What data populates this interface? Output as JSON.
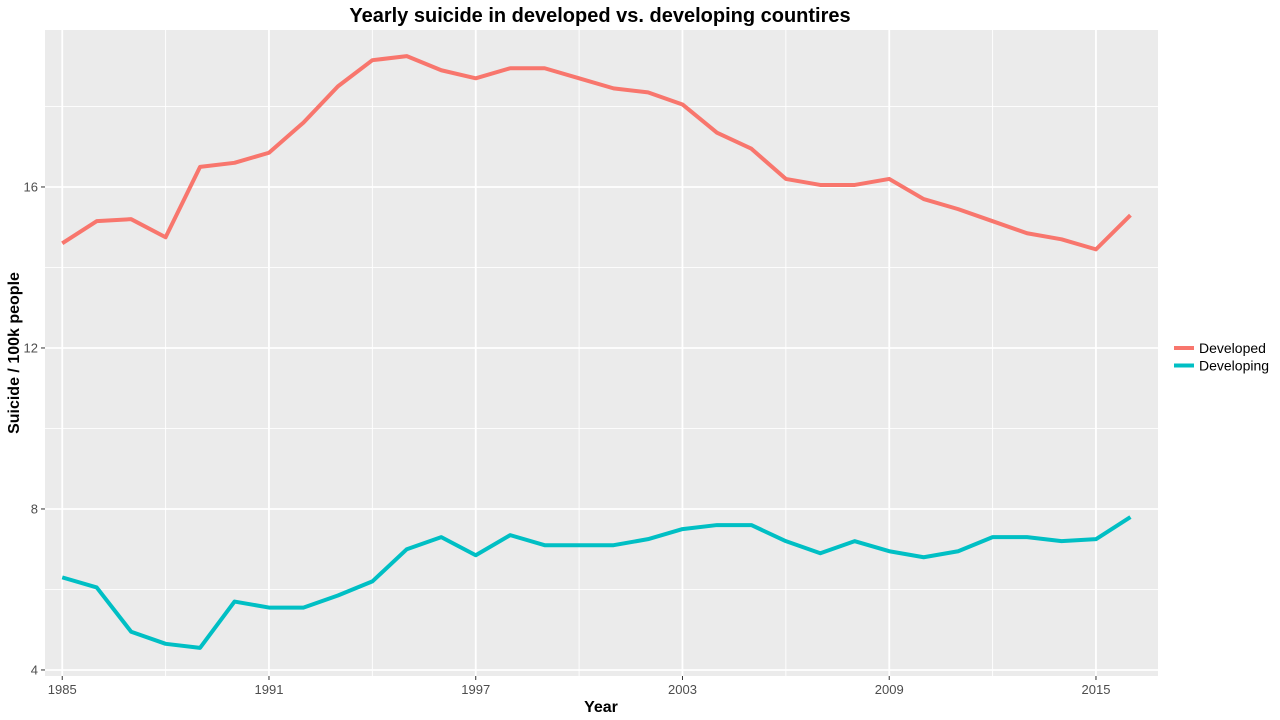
{
  "chart_data": {
    "type": "line",
    "title": "Yearly suicide in developed vs. developing countires",
    "xlabel": "Year",
    "ylabel": "Suicide / 100k people",
    "xlim": [
      1984.5,
      2016.8
    ],
    "ylim": [
      3.85,
      19.9
    ],
    "x_ticks": [
      1985,
      1991,
      1997,
      2003,
      2009,
      2015
    ],
    "y_ticks": [
      4,
      8,
      12,
      16
    ],
    "grid": true,
    "background": "#ebebeb",
    "legend_position": "right",
    "x": [
      1985,
      1986,
      1987,
      1988,
      1989,
      1990,
      1991,
      1992,
      1993,
      1994,
      1995,
      1996,
      1997,
      1998,
      1999,
      2000,
      2001,
      2002,
      2003,
      2004,
      2005,
      2006,
      2007,
      2008,
      2009,
      2010,
      2011,
      2012,
      2013,
      2014,
      2015,
      2016
    ],
    "series": [
      {
        "name": "Developed",
        "color": "#f8766d",
        "values": [
          14.6,
          15.15,
          15.2,
          14.75,
          16.5,
          16.6,
          16.85,
          17.6,
          18.5,
          19.15,
          19.25,
          18.9,
          18.7,
          18.95,
          18.95,
          18.7,
          18.45,
          18.35,
          18.05,
          17.35,
          16.95,
          16.2,
          16.05,
          16.05,
          16.2,
          15.7,
          15.45,
          15.15,
          14.85,
          14.7,
          14.45,
          15.3
        ]
      },
      {
        "name": "Developing",
        "color": "#00bfc4",
        "values": [
          6.3,
          6.05,
          4.95,
          4.65,
          4.55,
          5.7,
          5.55,
          5.55,
          5.85,
          6.2,
          7.0,
          7.3,
          6.85,
          7.35,
          7.1,
          7.1,
          7.1,
          7.25,
          7.5,
          7.6,
          7.6,
          7.2,
          6.9,
          7.2,
          6.95,
          6.8,
          6.95,
          7.3,
          7.3,
          7.2,
          7.25,
          7.8
        ]
      }
    ]
  }
}
